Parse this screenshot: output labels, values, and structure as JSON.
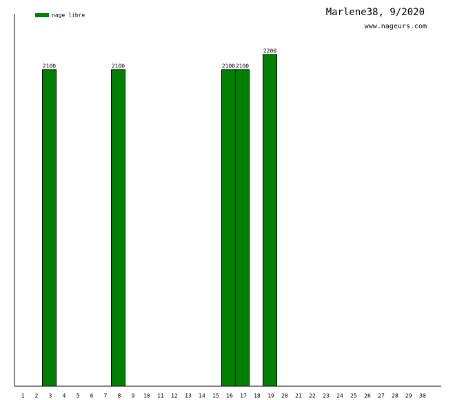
{
  "chart_data": {
    "type": "bar",
    "title": "Marlene38, 9/2020",
    "subtitle": "www.nageurs.com",
    "categories": [
      "1",
      "2",
      "3",
      "4",
      "5",
      "6",
      "7",
      "8",
      "9",
      "10",
      "11",
      "12",
      "13",
      "14",
      "15",
      "16",
      "17",
      "18",
      "19",
      "20",
      "21",
      "22",
      "23",
      "24",
      "25",
      "26",
      "27",
      "28",
      "29",
      "30"
    ],
    "series": [
      {
        "name": "nage libre",
        "color": "#008000",
        "values": [
          null,
          null,
          2100,
          null,
          null,
          null,
          null,
          2100,
          null,
          null,
          null,
          null,
          null,
          null,
          null,
          2100,
          2100,
          null,
          2200,
          null,
          null,
          null,
          null,
          null,
          null,
          null,
          null,
          null,
          null,
          null
        ]
      }
    ],
    "ylim": [
      0,
      2470
    ],
    "legend": "top-left"
  }
}
